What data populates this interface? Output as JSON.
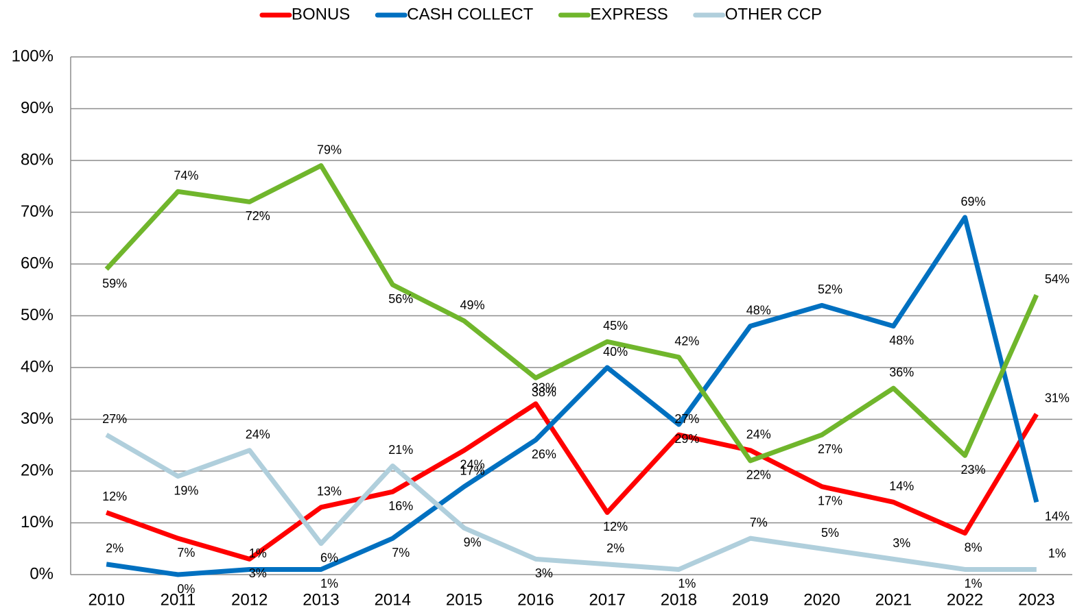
{
  "chart_data": {
    "type": "line",
    "categories": [
      "2010",
      "2011",
      "2012",
      "2013",
      "2014",
      "2015",
      "2016",
      "2017",
      "2018",
      "2019",
      "2020",
      "2021",
      "2022",
      "2023"
    ],
    "ylim": [
      0,
      100
    ],
    "yticks": [
      {
        "value": 0,
        "label": "0%"
      },
      {
        "value": 10,
        "label": "10%"
      },
      {
        "value": 20,
        "label": "20%"
      },
      {
        "value": 30,
        "label": "30%"
      },
      {
        "value": 40,
        "label": "40%"
      },
      {
        "value": 50,
        "label": "50%"
      },
      {
        "value": 60,
        "label": "60%"
      },
      {
        "value": 70,
        "label": "70%"
      },
      {
        "value": 80,
        "label": "80%"
      },
      {
        "value": 90,
        "label": "90%"
      },
      {
        "value": 100,
        "label": "100%"
      }
    ],
    "grid": true,
    "legend": "top",
    "series": [
      {
        "name": "BONUS",
        "color": "#ff0000",
        "values": [
          12,
          7,
          3,
          13,
          16,
          24,
          33,
          12,
          27,
          24,
          17,
          14,
          8,
          31
        ],
        "value_labels": [
          "12%",
          "7%",
          "3%",
          "13%",
          "16%",
          "24%",
          "33%",
          "12%",
          "27%",
          "24%",
          "17%",
          "14%",
          "8%",
          "31%"
        ]
      },
      {
        "name": "CASH COLLECT",
        "color": "#0070c0",
        "values": [
          2,
          0,
          1,
          1,
          7,
          17,
          26,
          40,
          29,
          48,
          52,
          48,
          69,
          14
        ],
        "value_labels": [
          "2%",
          "0%",
          "1%",
          "1%",
          "7%",
          "17%",
          "26%",
          "40%",
          "29%",
          "48%",
          "52%",
          "48%",
          "69%",
          "14%"
        ]
      },
      {
        "name": "EXPRESS",
        "color": "#70b62c",
        "values": [
          59,
          74,
          72,
          79,
          56,
          49,
          38,
          45,
          42,
          22,
          27,
          36,
          23,
          54
        ],
        "value_labels": [
          "59%",
          "74%",
          "72%",
          "79%",
          "56%",
          "49%",
          "38%",
          "45%",
          "42%",
          "22%",
          "27%",
          "36%",
          "23%",
          "54%"
        ]
      },
      {
        "name": "OTHER CCP",
        "color": "#b0cfdc",
        "values": [
          27,
          19,
          24,
          6,
          21,
          9,
          3,
          2,
          1,
          7,
          5,
          3,
          1,
          1
        ],
        "value_labels": [
          "27%",
          "19%",
          "24%",
          "6%",
          "21%",
          "9%",
          "3%",
          "2%",
          "1%",
          "7%",
          "5%",
          "3%",
          "1%",
          "1%"
        ]
      }
    ]
  }
}
